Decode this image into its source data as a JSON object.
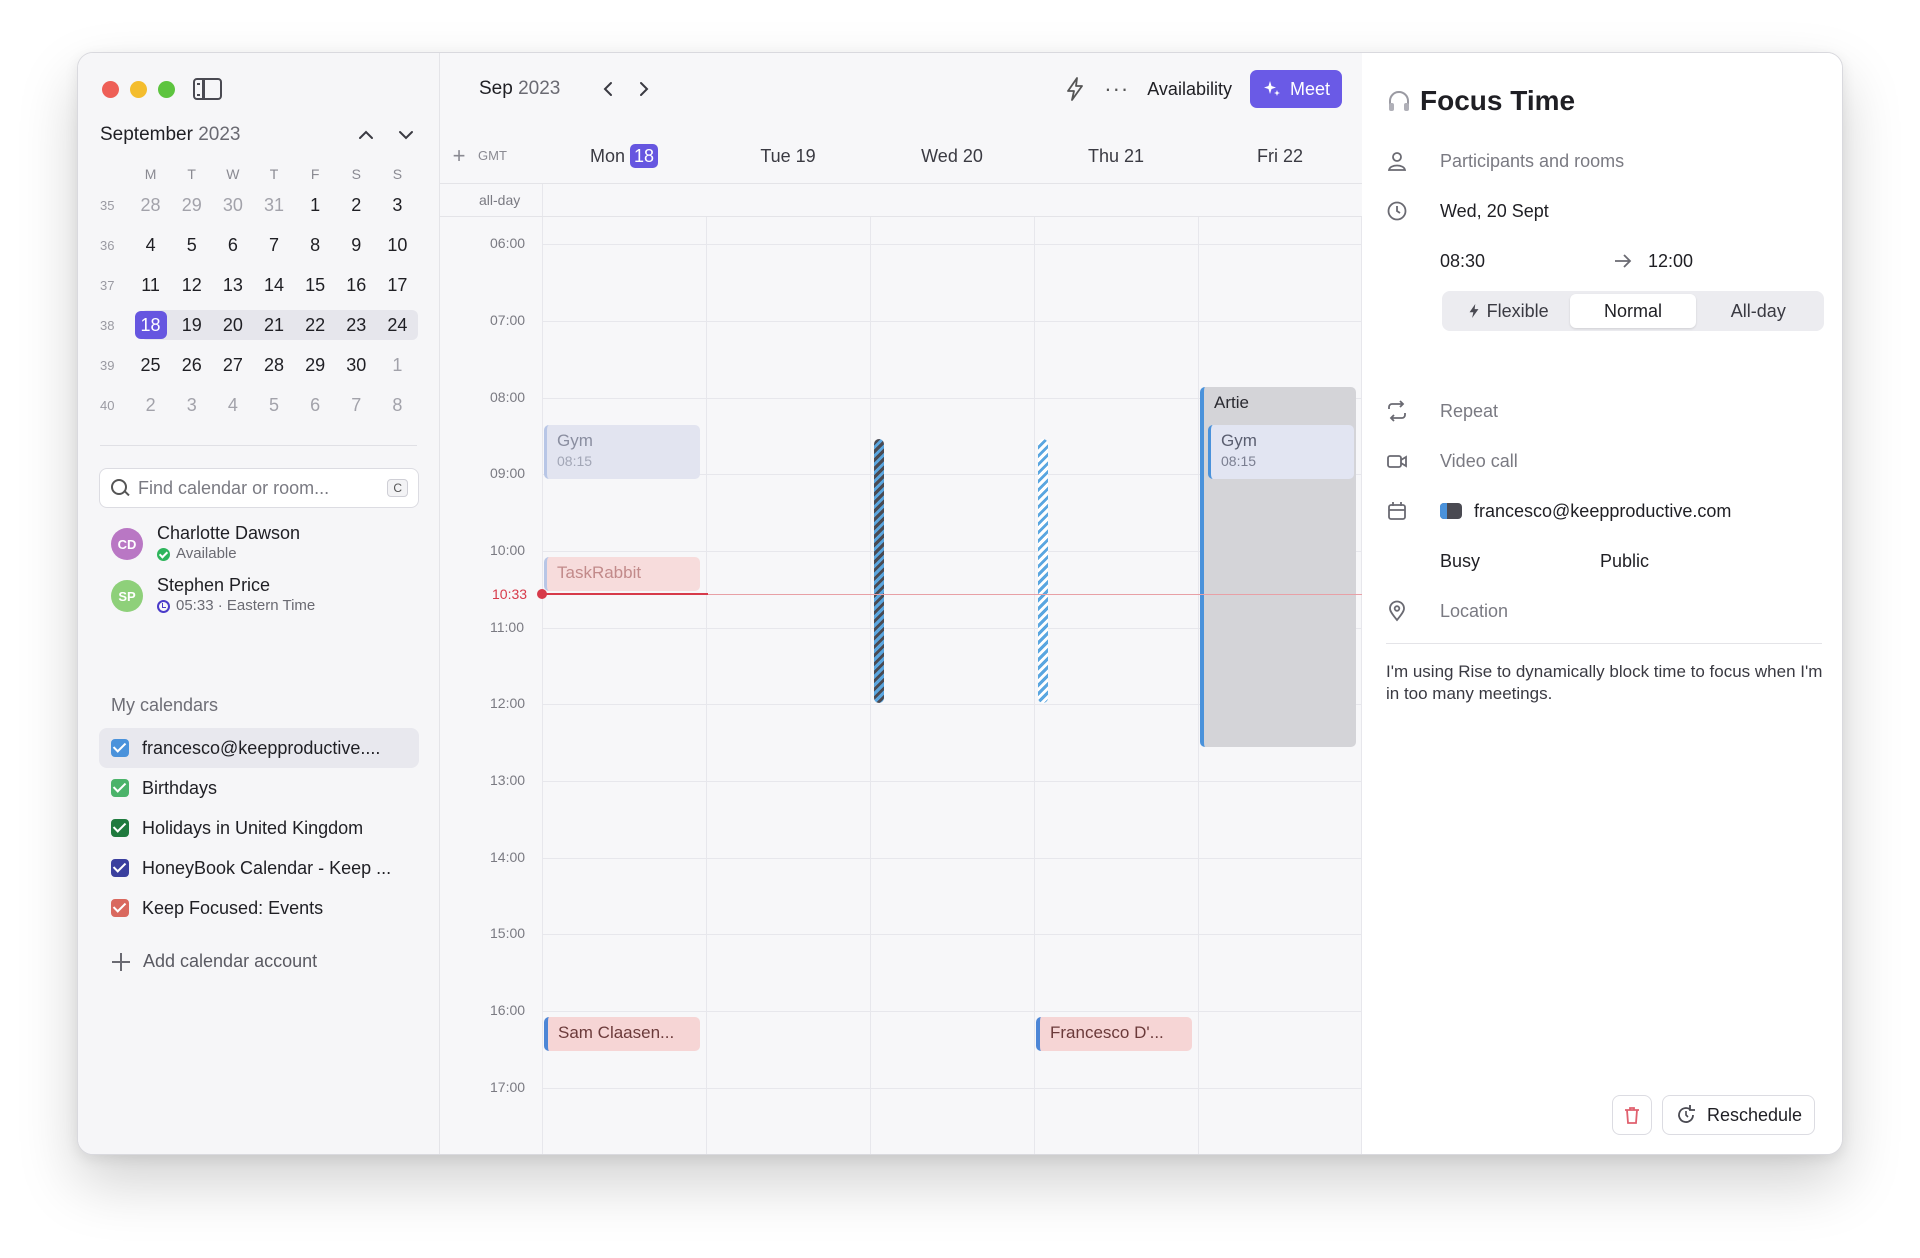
{
  "sidebar": {
    "mini_month": "September",
    "mini_year": "2023",
    "dow": [
      "M",
      "T",
      "W",
      "T",
      "F",
      "S",
      "S"
    ],
    "weeks": [
      {
        "wk": "35",
        "days": [
          "28",
          "29",
          "30",
          "31",
          "1",
          "2",
          "3"
        ]
      },
      {
        "wk": "36",
        "days": [
          "4",
          "5",
          "6",
          "7",
          "8",
          "9",
          "10"
        ]
      },
      {
        "wk": "37",
        "days": [
          "11",
          "12",
          "13",
          "14",
          "15",
          "16",
          "17"
        ]
      },
      {
        "wk": "38",
        "days": [
          "18",
          "19",
          "20",
          "21",
          "22",
          "23",
          "24"
        ]
      },
      {
        "wk": "39",
        "days": [
          "25",
          "26",
          "27",
          "28",
          "29",
          "30",
          "1"
        ]
      },
      {
        "wk": "40",
        "days": [
          "2",
          "3",
          "4",
          "5",
          "6",
          "7",
          "8"
        ]
      }
    ],
    "search": {
      "placeholder": "Find calendar or room...",
      "shortcut": "C"
    },
    "people": [
      {
        "initials": "CD",
        "name": "Charlotte Dawson",
        "status": "Available",
        "color": "#b977c4"
      },
      {
        "initials": "SP",
        "name": "Stephen Price",
        "status": "05:33 · Eastern Time",
        "color": "#8ed07a"
      }
    ],
    "my_calendars_title": "My calendars",
    "calendars": [
      {
        "name": "francesco@keepproductive....",
        "color": "#4a92db",
        "active": true
      },
      {
        "name": "Birthdays",
        "color": "#4bb36a"
      },
      {
        "name": "Holidays in United Kingdom",
        "color": "#1f7a3e"
      },
      {
        "name": "HoneyBook Calendar - Keep ...",
        "color": "#3a3f9e"
      },
      {
        "name": "Keep Focused: Events",
        "color": "#d9685e"
      }
    ],
    "add_calendar": "Add calendar account"
  },
  "topbar": {
    "month": "Sep",
    "year": "2023",
    "availability": "Availability",
    "meet": "Meet",
    "accent": "#6a5ae6"
  },
  "dayheader": {
    "gmt": "GMT",
    "days": [
      {
        "label": "Mon",
        "num": "18"
      },
      {
        "label": "Tue 19"
      },
      {
        "label": "Wed 20"
      },
      {
        "label": "Thu 21"
      },
      {
        "label": "Fri 22"
      }
    ],
    "allday": "all-day"
  },
  "hours": [
    "06:00",
    "07:00",
    "08:00",
    "09:00",
    "10:00",
    "11:00",
    "12:00",
    "13:00",
    "14:00",
    "15:00",
    "16:00",
    "17:00"
  ],
  "now": "10:33",
  "events": {
    "gym_mon": {
      "title": "Gym",
      "time": "08:15"
    },
    "taskrabbit": {
      "title": "TaskRabbit"
    },
    "sam": {
      "title": "Sam Claasen..."
    },
    "francesco": {
      "title": "Francesco D'..."
    },
    "artie": {
      "title": "Artie"
    },
    "gym_fri": {
      "title": "Gym",
      "time": "08:15"
    }
  },
  "detail": {
    "title": "Focus Time",
    "participants": "Participants and rooms",
    "date": "Wed, 20 Sept",
    "start": "08:30",
    "end": "12:00",
    "modes": [
      "Flexible",
      "Normal",
      "All-day"
    ],
    "selected_mode": "Normal",
    "repeat": "Repeat",
    "video": "Video call",
    "calendar": "francesco@keepproductive.com",
    "busy": "Busy",
    "visibility": "Public",
    "location": "Location",
    "description": "I'm using Rise to dynamically block time to focus when I'm in too many meetings.",
    "reschedule": "Reschedule"
  }
}
